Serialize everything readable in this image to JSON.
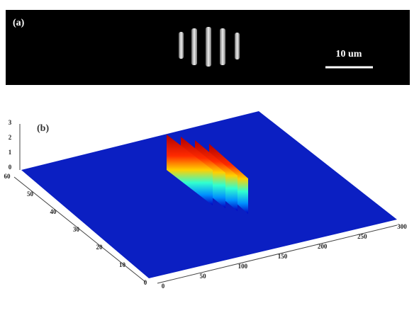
{
  "panel_a": {
    "label": "(a)",
    "scale_bar": "10 um"
  },
  "panel_b": {
    "label": "(b)",
    "x_ticks": [
      0,
      50,
      100,
      150,
      200,
      250,
      300
    ],
    "y_ticks": [
      0,
      10,
      20,
      30,
      40,
      50,
      60
    ],
    "z_ticks": [
      0,
      1,
      2,
      3
    ]
  }
}
